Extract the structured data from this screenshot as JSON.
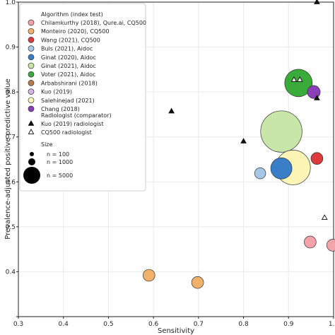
{
  "chart_data": {
    "type": "scatter",
    "title": "",
    "xlabel": "Sensitivity",
    "ylabel": "Prevalence-adjusted positive predictive value",
    "xlim": [
      0.3,
      1.0
    ],
    "ylim": [
      0.3,
      1.0
    ],
    "x_ticks": [
      0.3,
      0.4,
      0.5,
      0.6,
      0.7,
      0.8,
      0.9,
      1.0
    ],
    "y_ticks": [
      0.3,
      0.4,
      0.5,
      0.6,
      0.7,
      0.8,
      0.9,
      1.0
    ],
    "x_tick_labels": [
      "0.3",
      "0.4",
      "0.5",
      "0.6",
      "0.7",
      "0.8",
      "0.9",
      "1.0"
    ],
    "y_tick_labels": [
      "",
      "0.4",
      "0.5",
      "0.6",
      "0.7",
      "0.8",
      "0.9",
      "1.0"
    ],
    "grid": true,
    "legend_position": "upper-left",
    "algorithm_header": "Algorithm (index test)",
    "series": [
      {
        "name": "Chilamkurthy (2018), Qure.ai, CQ500",
        "color": "#f4a3a8",
        "points": [
          {
            "x": 0.948,
            "y": 0.466,
            "n": 491
          },
          {
            "x": 0.998,
            "y": 0.459,
            "n": 491
          }
        ]
      },
      {
        "name": "Monteiro (2020), CQ500",
        "color": "#f2b16b",
        "points": [
          {
            "x": 0.59,
            "y": 0.392,
            "n": 491
          },
          {
            "x": 0.698,
            "y": 0.376,
            "n": 491
          }
        ]
      },
      {
        "name": "Wang (2021), CQ500",
        "color": "#dd3b3b",
        "points": [
          {
            "x": 0.963,
            "y": 0.652,
            "n": 491
          }
        ]
      },
      {
        "name": "Buls (2021), Aidoc",
        "color": "#a7c7e7",
        "points": [
          {
            "x": 0.837,
            "y": 0.619,
            "n": 400
          }
        ]
      },
      {
        "name": "Ginat (2020), Aidoc",
        "color": "#3a7ec8",
        "points": [
          {
            "x": 0.884,
            "y": 0.63,
            "n": 2000
          }
        ]
      },
      {
        "name": "Ginat (2021), Aidoc",
        "color": "#c8e6a8",
        "points": [
          {
            "x": 0.884,
            "y": 0.712,
            "n": 8800
          }
        ]
      },
      {
        "name": "Voter (2021), Aidoc",
        "color": "#3aaa3a",
        "points": [
          {
            "x": 0.922,
            "y": 0.82,
            "n": 3600
          }
        ]
      },
      {
        "name": "Arbabshirani (2018)",
        "color": "#b67d4a",
        "points": []
      },
      {
        "name": "Kuo (2019)",
        "color": "#d6b4e7",
        "points": []
      },
      {
        "name": "Salehinejad (2021)",
        "color": "#fdf5b6",
        "points": [
          {
            "x": 0.91,
            "y": 0.632,
            "n": 6000
          }
        ]
      },
      {
        "name": "Chang (2018)",
        "color": "#8a3fb8",
        "points": [
          {
            "x": 0.956,
            "y": 0.8,
            "n": 600
          }
        ]
      }
    ],
    "radiologist_header": "Radiologist (comparator)",
    "radiologists": [
      {
        "name": "Kuo (2019) radiologist",
        "marker": "filled-triangle",
        "points": [
          {
            "x": 0.64,
            "y": 0.757
          },
          {
            "x": 0.8,
            "y": 0.69
          },
          {
            "x": 0.963,
            "y": 0.786
          },
          {
            "x": 0.963,
            "y": 1.0
          }
        ]
      },
      {
        "name": "CQ500 radiologist",
        "marker": "open-triangle",
        "points": [
          {
            "x": 0.912,
            "y": 0.827
          },
          {
            "x": 0.925,
            "y": 0.827
          },
          {
            "x": 0.98,
            "y": 0.52
          }
        ]
      }
    ],
    "size_header": "Size",
    "size_legend": [
      {
        "label": "n = 100",
        "n": 100
      },
      {
        "label": "n = 1000",
        "n": 1000
      },
      {
        "label": "n = 5000",
        "n": 5000
      }
    ]
  }
}
